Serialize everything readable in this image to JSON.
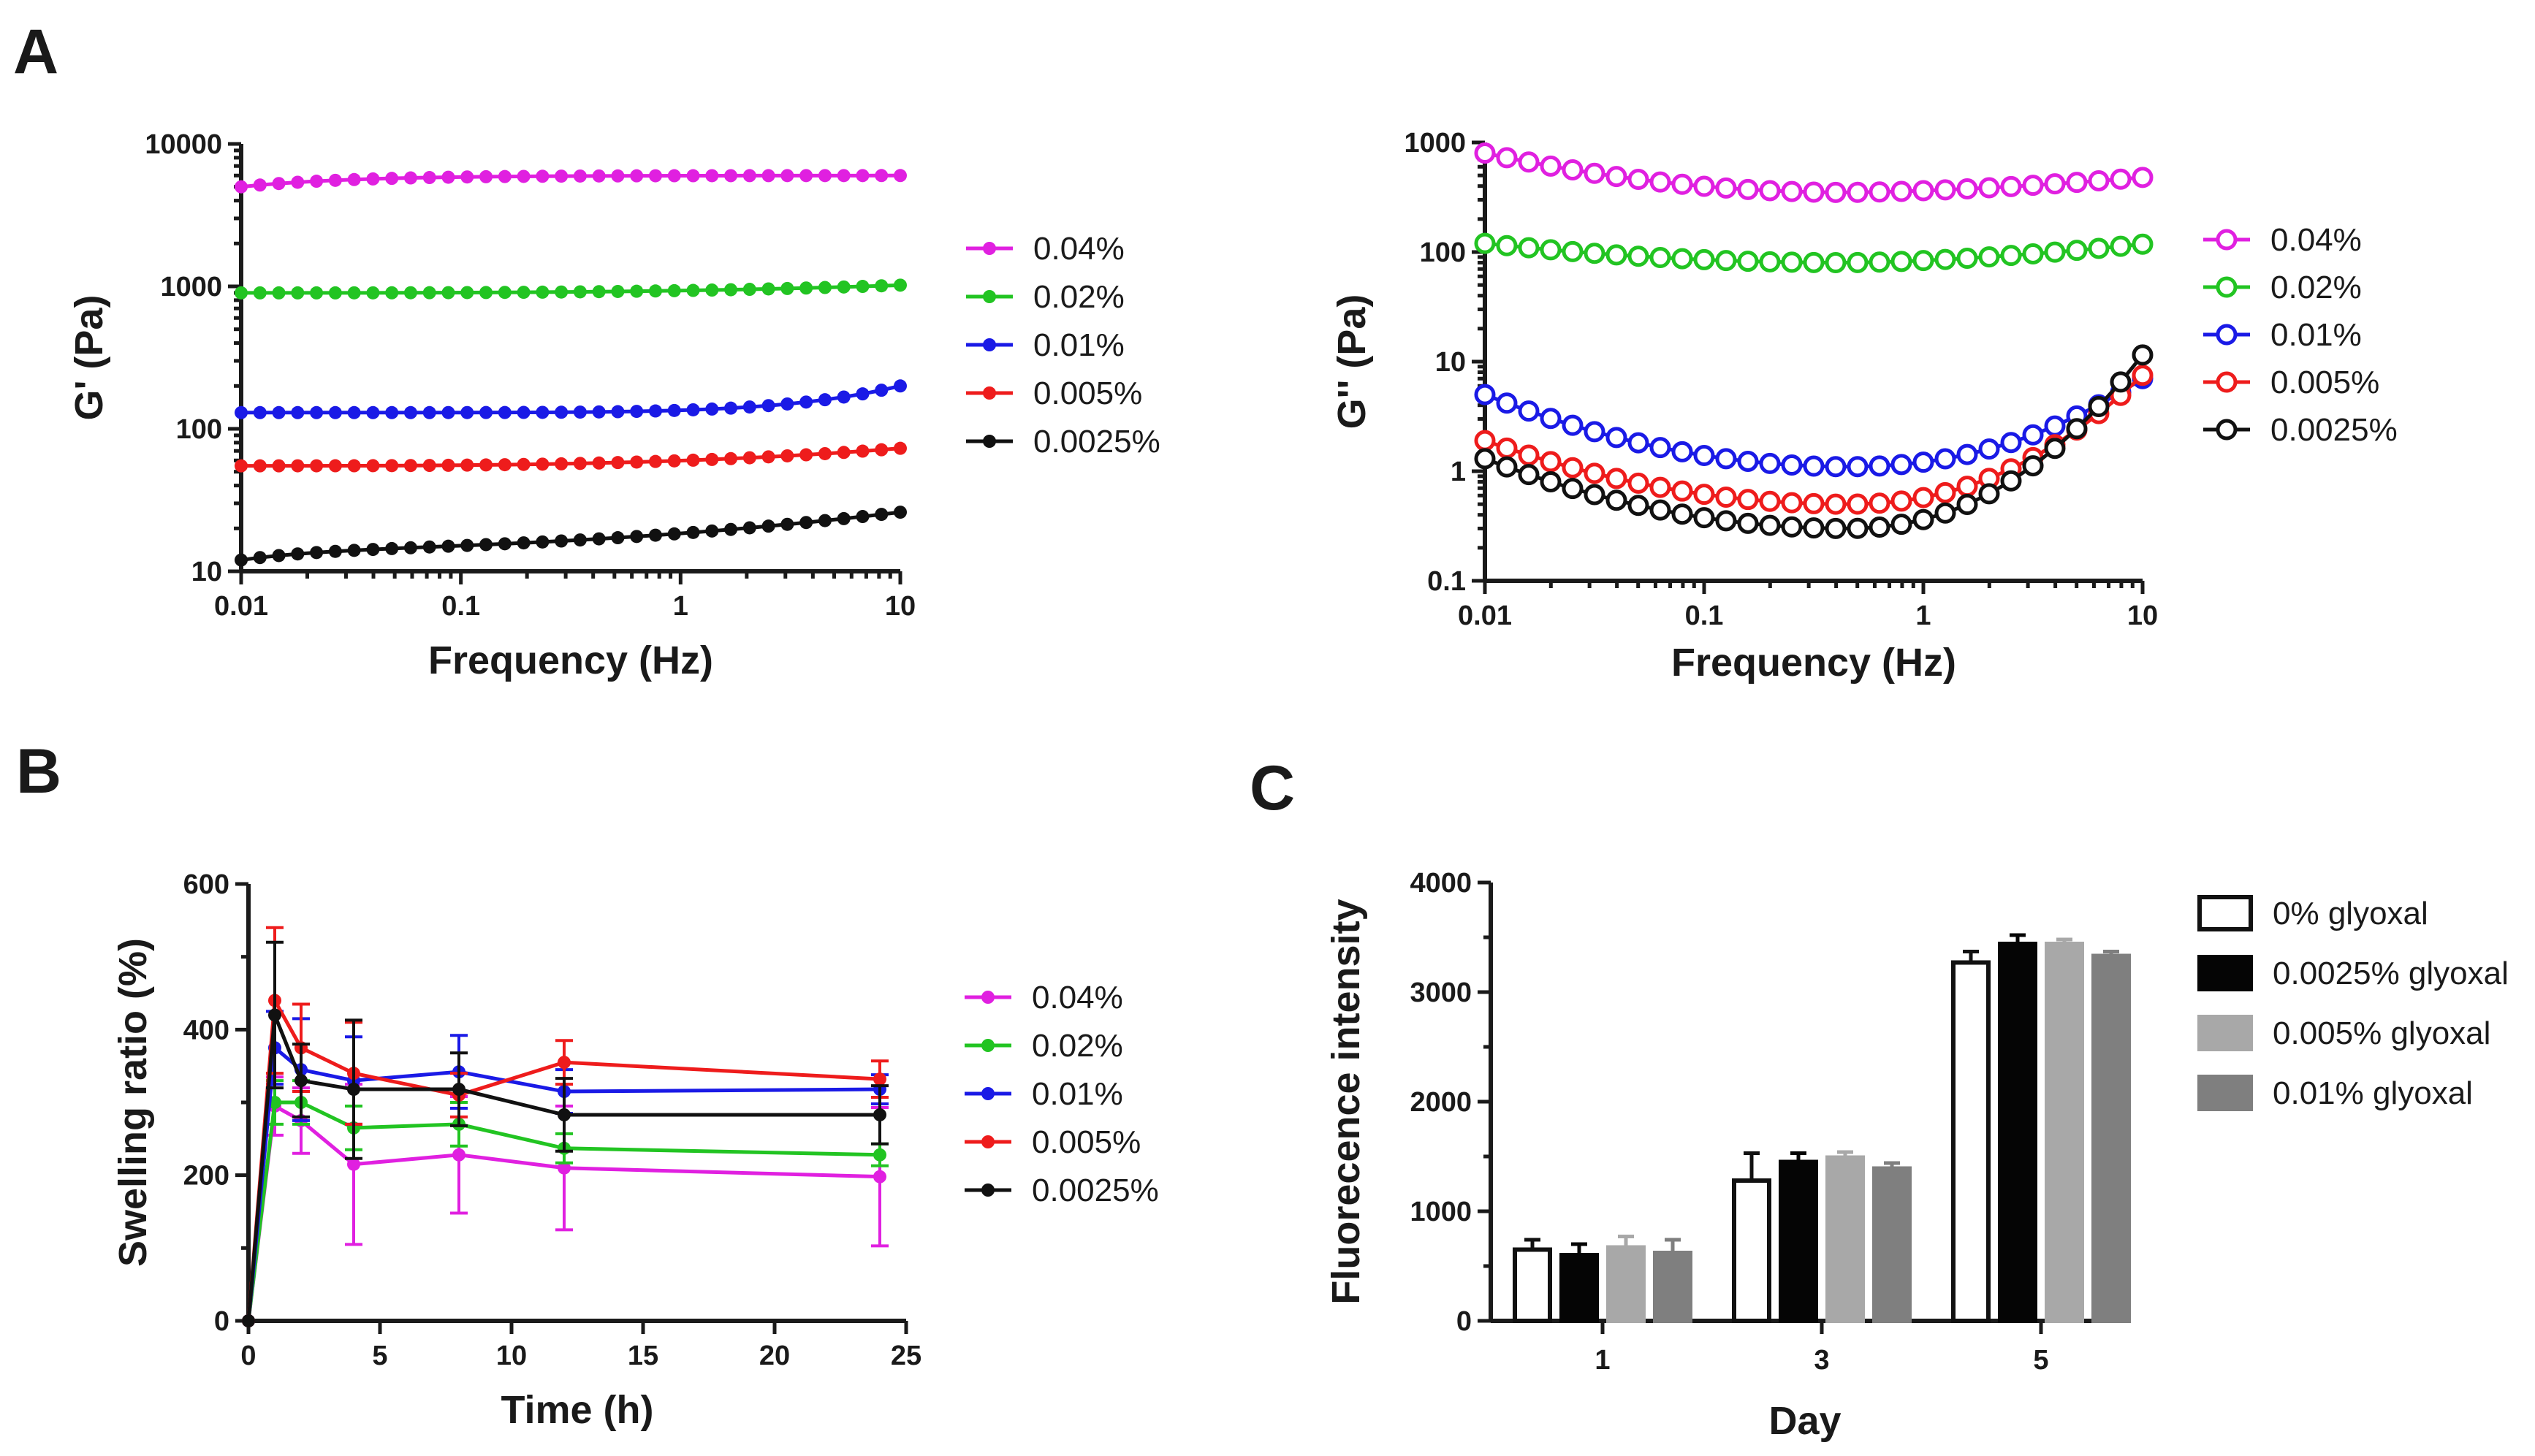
{
  "panels": {
    "A": "A",
    "B": "B",
    "C": "C"
  },
  "chart_data": [
    {
      "id": "A_left",
      "type": "line",
      "title": "",
      "xlabel": "Frequency (Hz)",
      "ylabel": "G' (Pa)",
      "xscale": "log",
      "yscale": "log",
      "xlim": [
        0.01,
        10
      ],
      "ylim": [
        10,
        10000
      ],
      "xticks": [
        0.01,
        0.1,
        1,
        10
      ],
      "xtick_labels": [
        "0.01",
        "0.1",
        "1",
        "10"
      ],
      "yticks": [
        10,
        100,
        1000,
        10000
      ],
      "ytick_labels": [
        "10",
        "100",
        "1000",
        "10000"
      ],
      "marker": "filled-circle",
      "legend_position": "right",
      "series": [
        {
          "name": "0.04%",
          "color": "#e020e0",
          "start": 5000,
          "end": 6000,
          "shape": "rise-early"
        },
        {
          "name": "0.02%",
          "color": "#22c422",
          "start": 900,
          "end": 1020,
          "shape": "flat-rise"
        },
        {
          "name": "0.01%",
          "color": "#1a1ae6",
          "start": 130,
          "end": 200,
          "shape": "late-rise"
        },
        {
          "name": "0.005%",
          "color": "#ee1c1c",
          "start": 55,
          "end": 73,
          "shape": "flat-rise"
        },
        {
          "name": "0.0025%",
          "color": "#111111",
          "start": 12,
          "end": 26,
          "shape": "steady-rise"
        }
      ]
    },
    {
      "id": "A_right",
      "type": "line",
      "title": "",
      "xlabel": "Frequency (Hz)",
      "ylabel": "G'' (Pa)",
      "xscale": "log",
      "yscale": "log",
      "xlim": [
        0.01,
        10
      ],
      "ylim": [
        0.1,
        1000
      ],
      "xticks": [
        0.01,
        0.1,
        1,
        10
      ],
      "xtick_labels": [
        "0.01",
        "0.1",
        "1",
        "10"
      ],
      "yticks": [
        0.1,
        1,
        10,
        100,
        1000
      ],
      "ytick_labels": [
        "0.1",
        "1",
        "10",
        "100",
        "1000"
      ],
      "marker": "open-circle",
      "legend_position": "right",
      "series": [
        {
          "name": "0.04%",
          "color": "#e020e0",
          "start": 800,
          "min": 350,
          "end": 480
        },
        {
          "name": "0.02%",
          "color": "#22c422",
          "start": 120,
          "min": 80,
          "end": 118
        },
        {
          "name": "0.01%",
          "color": "#1a1ae6",
          "start": 5.0,
          "min": 1.1,
          "end": 7.0
        },
        {
          "name": "0.005%",
          "color": "#ee1c1c",
          "start": 1.9,
          "min": 0.5,
          "end": 7.5
        },
        {
          "name": "0.0025%",
          "color": "#111111",
          "start": 1.3,
          "min": 0.3,
          "end": 11.5
        }
      ]
    },
    {
      "id": "B",
      "type": "line",
      "title": "",
      "xlabel": "Time (h)",
      "ylabel": "Swelling ratio (%)",
      "xlim": [
        0,
        25
      ],
      "ylim": [
        0,
        600
      ],
      "xticks": [
        0,
        5,
        10,
        15,
        20,
        25
      ],
      "xtick_labels": [
        "0",
        "5",
        "10",
        "15",
        "20",
        "25"
      ],
      "yticks": [
        0,
        200,
        400,
        600
      ],
      "ytick_labels": [
        "0",
        "200",
        "400",
        "600"
      ],
      "x": [
        0,
        1,
        2,
        4,
        8,
        12,
        24
      ],
      "legend_position": "right",
      "series": [
        {
          "name": "0.04%",
          "color": "#e020e0",
          "values": [
            0,
            295,
            275,
            215,
            228,
            210,
            198
          ],
          "errors": [
            0,
            40,
            45,
            110,
            80,
            85,
            95
          ]
        },
        {
          "name": "0.02%",
          "color": "#22c422",
          "values": [
            0,
            300,
            300,
            265,
            270,
            237,
            228
          ],
          "errors": [
            0,
            30,
            30,
            30,
            30,
            20,
            15
          ]
        },
        {
          "name": "0.01%",
          "color": "#1a1ae6",
          "values": [
            0,
            375,
            345,
            330,
            342,
            315,
            318
          ],
          "errors": [
            0,
            50,
            70,
            60,
            50,
            30,
            20
          ]
        },
        {
          "name": "0.005%",
          "color": "#ee1c1c",
          "values": [
            0,
            440,
            375,
            340,
            310,
            355,
            332
          ],
          "errors": [
            0,
            100,
            60,
            70,
            30,
            30,
            25
          ]
        },
        {
          "name": "0.0025%",
          "color": "#111111",
          "values": [
            0,
            420,
            330,
            318,
            318,
            283,
            283
          ],
          "errors": [
            0,
            100,
            50,
            95,
            50,
            50,
            40
          ]
        }
      ]
    },
    {
      "id": "C",
      "type": "bar",
      "title": "",
      "xlabel": "Day",
      "ylabel": "Fluorecence intensity",
      "categories": [
        "1",
        "3",
        "5"
      ],
      "ylim": [
        0,
        4000
      ],
      "yticks": [
        0,
        1000,
        2000,
        3000,
        4000
      ],
      "ytick_labels": [
        "0",
        "1000",
        "2000",
        "3000",
        "4000"
      ],
      "legend_position": "right",
      "series": [
        {
          "name": "0% glyoxal",
          "color": "#ffffff",
          "stroke": "#111111",
          "values": [
            650,
            1280,
            3270
          ],
          "errors": [
            90,
            250,
            100
          ]
        },
        {
          "name": "0.0025% glyoxal",
          "color": "#050505",
          "stroke": "#050505",
          "values": [
            600,
            1450,
            3440
          ],
          "errors": [
            100,
            80,
            80
          ]
        },
        {
          "name": "0.005% glyoxal",
          "color": "#a8a8a8",
          "stroke": "#a8a8a8",
          "values": [
            670,
            1490,
            3440
          ],
          "errors": [
            100,
            50,
            40
          ]
        },
        {
          "name": "0.01% glyoxal",
          "color": "#7f7f7f",
          "stroke": "#7f7f7f",
          "values": [
            620,
            1390,
            3330
          ],
          "errors": [
            120,
            50,
            40
          ]
        }
      ]
    }
  ]
}
